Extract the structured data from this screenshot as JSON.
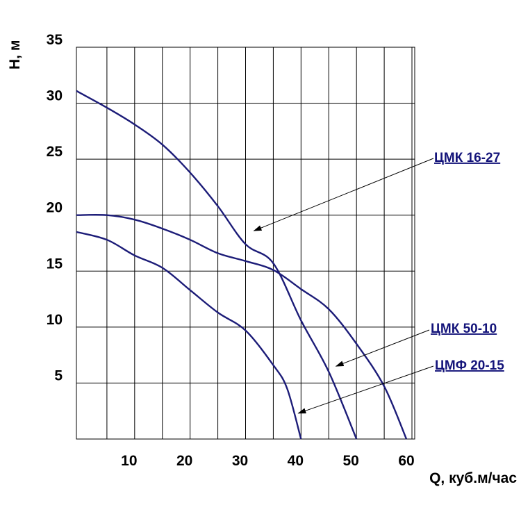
{
  "chart_data": {
    "type": "line",
    "title": "",
    "xlabel": "Q, куб.м/час",
    "ylabel": "H, м",
    "xlim": [
      -0.5,
      60.5
    ],
    "ylim": [
      0,
      35
    ],
    "grid": true,
    "x_ticks": [
      10,
      20,
      30,
      40,
      50,
      60
    ],
    "y_ticks": [
      5,
      10,
      15,
      20,
      25,
      30,
      35
    ],
    "colors": {
      "curve": "#1c1c78",
      "grid": "#000000",
      "label": "#14147a"
    },
    "series": [
      {
        "name": "ЦМК 16-27",
        "label_anchor": [
          31.5,
          18.6
        ],
        "points": [
          [
            -0.5,
            31.1
          ],
          [
            5,
            29.6
          ],
          [
            10,
            28.1
          ],
          [
            15,
            26.3
          ],
          [
            20,
            23.8
          ],
          [
            25,
            20.8
          ],
          [
            30,
            17.4
          ],
          [
            35,
            15.7
          ],
          [
            40,
            10.6
          ],
          [
            45,
            6.0
          ],
          [
            50,
            0
          ]
        ]
      },
      {
        "name": "ЦМК 50-10",
        "label_anchor": [
          46.3,
          6.5
        ],
        "points": [
          [
            -0.5,
            20.0
          ],
          [
            5,
            20.0
          ],
          [
            10,
            19.6
          ],
          [
            15,
            18.8
          ],
          [
            20,
            17.8
          ],
          [
            25,
            16.6
          ],
          [
            30,
            15.9
          ],
          [
            35,
            15.1
          ],
          [
            40,
            13.4
          ],
          [
            45,
            11.6
          ],
          [
            50,
            8.5
          ],
          [
            55,
            4.7
          ],
          [
            59,
            0
          ]
        ]
      },
      {
        "name": "ЦМФ 20-15",
        "label_anchor": [
          39.5,
          2.3
        ],
        "points": [
          [
            -0.5,
            18.5
          ],
          [
            5,
            17.8
          ],
          [
            10,
            16.4
          ],
          [
            15,
            15.3
          ],
          [
            20,
            13.3
          ],
          [
            25,
            11.3
          ],
          [
            30,
            9.7
          ],
          [
            35,
            6.6
          ],
          [
            37.5,
            4.5
          ],
          [
            40,
            0
          ]
        ]
      }
    ]
  }
}
